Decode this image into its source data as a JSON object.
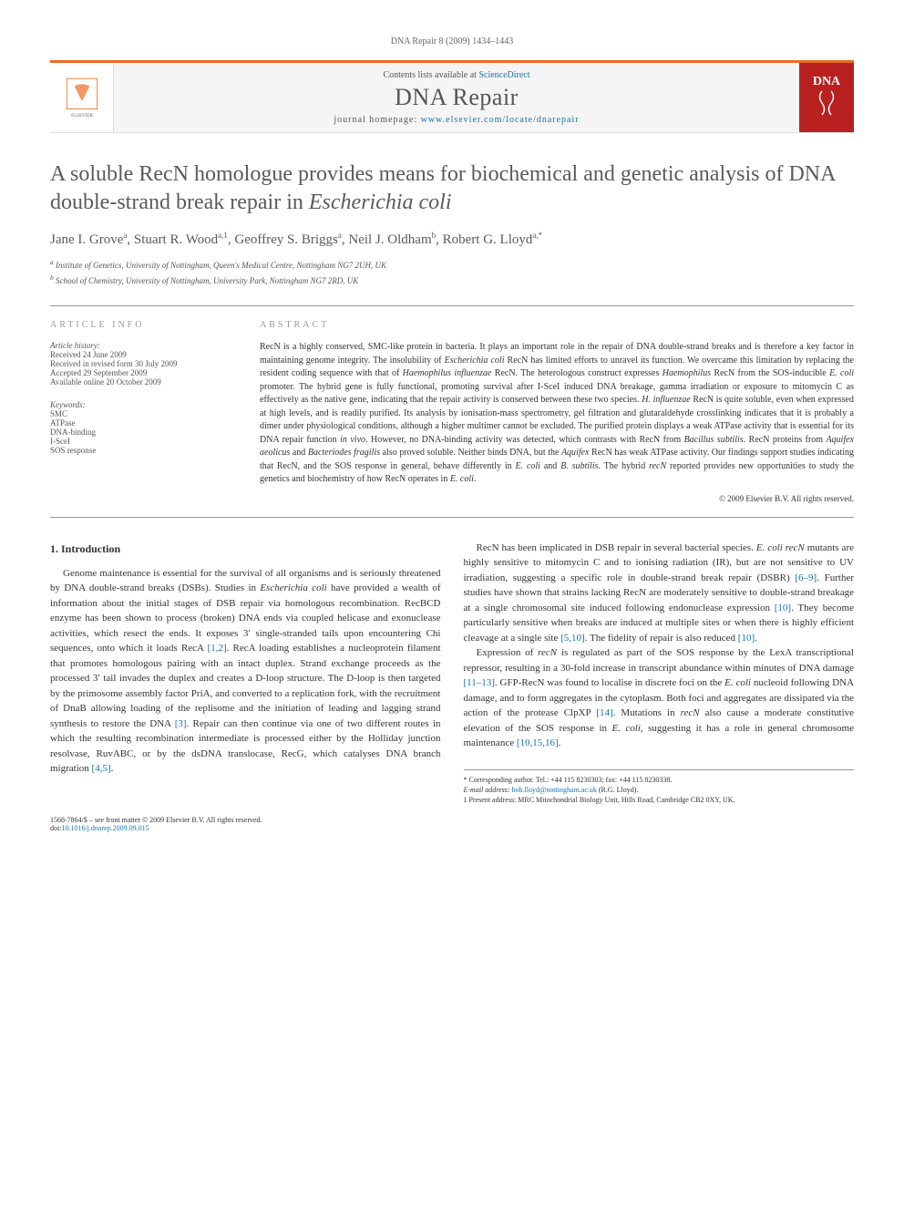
{
  "page_header": "DNA Repair 8 (2009) 1434–1443",
  "top_bar": {
    "contents_prefix": "Contents lists available at ",
    "contents_link": "ScienceDirect",
    "journal_title": "DNA Repair",
    "home_prefix": "journal homepage: ",
    "home_link": "www.elsevier.com/locate/dnarepair",
    "cover_text": "DNA",
    "border_color": "#ea6b24",
    "link_color": "#1773b0"
  },
  "article": {
    "title_pre": "A soluble RecN homologue provides means for biochemical and genetic analysis of DNA double-strand break repair in ",
    "title_em": "Escherichia coli",
    "authors_html": "Jane I. Grove<sup>a</sup>, Stuart R. Wood<sup>a,1</sup>, Geoffrey S. Briggs<sup>a</sup>, Neil J. Oldham<sup>b</sup>, Robert G. Lloyd<sup>a,*</sup>",
    "affiliations": [
      "a Institute of Genetics, University of Nottingham, Queen's Medical Centre, Nottingham NG7 2UH, UK",
      "b School of Chemistry, University of Nottingham, University Park, Nottingham NG7 2RD, UK"
    ]
  },
  "article_info": {
    "heading": "ARTICLE INFO",
    "history_label": "Article history:",
    "history": [
      "Received 24 June 2009",
      "Received in revised form 30 July 2009",
      "Accepted 29 September 2009",
      "Available online 20 October 2009"
    ],
    "keywords_label": "Keywords:",
    "keywords": [
      "SMC",
      "ATPase",
      "DNA-binding",
      "I-SceI",
      "SOS response"
    ]
  },
  "abstract": {
    "heading": "ABSTRACT",
    "text": "RecN is a highly conserved, SMC-like protein in bacteria. It plays an important role in the repair of DNA double-strand breaks and is therefore a key factor in maintaining genome integrity. The insolubility of <em>Escherichia coli</em> RecN has limited efforts to unravel its function. We overcame this limitation by replacing the resident coding sequence with that of <em>Haemophilus influenzae</em> RecN. The heterologous construct expresses <em>Haemophilus</em> RecN from the SOS-inducible <em>E. coli</em> promoter. The hybrid gene is fully functional, promoting survival after I-SceI induced DNA breakage, gamma irradiation or exposure to mitomycin C as effectively as the native gene, indicating that the repair activity is conserved between these two species. <em>H. influenzae</em> RecN is quite soluble, even when expressed at high levels, and is readily purified. Its analysis by ionisation-mass spectrometry, gel filtration and glutaraldehyde crosslinking indicates that it is probably a dimer under physiological conditions, although a higher multimer cannot be excluded. The purified protein displays a weak ATPase activity that is essential for its DNA repair function <em>in vivo</em>. However, no DNA-binding activity was detected, which contrasts with RecN from <em>Bacillus subtilis</em>. RecN proteins from <em>Aquifex aeolicus</em> and <em>Bacteriodes fragilis</em> also proved soluble. Neither binds DNA, but the <em>Aquifex</em> RecN has weak ATPase activity. Our findings support studies indicating that RecN, and the SOS response in general, behave differently in <em>E. coli</em> and <em>B. subtilis</em>. The hybrid <em>recN</em> reported provides new opportunities to study the genetics and biochemistry of how RecN operates in <em>E. coli</em>.",
    "copyright": "© 2009 Elsevier B.V. All rights reserved."
  },
  "body": {
    "section_heading": "1. Introduction",
    "paragraphs": [
      "Genome maintenance is essential for the survival of all organisms and is seriously threatened by DNA double-strand breaks (DSBs). Studies in <em>Escherichia coli</em> have provided a wealth of information about the initial stages of DSB repair via homologous recombination. RecBCD enzyme has been shown to process (broken) DNA ends via coupled helicase and exonuclease activities, which resect the ends. It exposes 3′ single-stranded tails upon encountering Chi sequences, onto which it loads RecA <span class='ref-link'>[1,2]</span>. RecA loading establishes a nucleoprotein filament that promotes homologous pairing with an intact duplex. Strand exchange proceeds as the processed 3′ tail invades the duplex and creates a D-loop structure. The D-loop is then targeted by the primosome assembly factor PriA, and converted to a replication fork, with the recruitment of DnaB allowing loading of the replisome and the initiation of leading and lagging strand synthesis to restore the DNA <span class='ref-link'>[3]</span>. Repair can then continue via one of two different routes in which the resulting recombination intermediate is processed either by the Holliday junction resolvase, RuvABC, or by the dsDNA translocase, RecG, which catalyses DNA branch migration <span class='ref-link'>[4,5]</span>.",
      "RecN has been implicated in DSB repair in several bacterial species. <em>E. coli recN</em> mutants are highly sensitive to mitomycin C and to ionising radiation (IR), but are not sensitive to UV irradiation, suggesting a specific role in double-strand break repair (DSBR) <span class='ref-link'>[6–9]</span>. Further studies have shown that strains lacking RecN are moderately sensitive to double-strand breakage at a single chromosomal site induced following endonuclease expression <span class='ref-link'>[10]</span>. They become particularly sensitive when breaks are induced at multiple sites or when there is highly efficient cleavage at a single site <span class='ref-link'>[5,10]</span>. The fidelity of repair is also reduced <span class='ref-link'>[10]</span>.",
      "Expression of <em>recN</em> is regulated as part of the SOS response by the LexA transcriptional repressor, resulting in a 30-fold increase in transcript abundance within minutes of DNA damage <span class='ref-link'>[11–13]</span>. GFP-RecN was found to localise in discrete foci on the <em>E. coli</em> nucleoid following DNA damage, and to form aggregates in the cytoplasm. Both foci and aggregates are dissipated via the action of the protease ClpXP <span class='ref-link'>[14]</span>. Mutations in <em>recN</em> also cause a moderate constitutive elevation of the SOS response in <em>E. coli</em>, suggesting it has a role in general chromosome maintenance <span class='ref-link'>[10,15,16]</span>."
    ]
  },
  "footnotes": {
    "corr": "* Corresponding author. Tel.: +44 115 8230303; fax: +44 115 8230338.",
    "email_label": "E-mail address: ",
    "email": "bob.lloyd@nottingham.ac.uk",
    "email_suffix": " (R.G. Lloyd).",
    "present": "1 Present address: MRC Mitochondrial Biology Unit, Hills Road, Cambridge CB2 0XY, UK."
  },
  "footer": {
    "issn": "1568-7864/$ – see front matter © 2009 Elsevier B.V. All rights reserved.",
    "doi_label": "doi:",
    "doi": "10.1016/j.dnarep.2009.09.015"
  }
}
